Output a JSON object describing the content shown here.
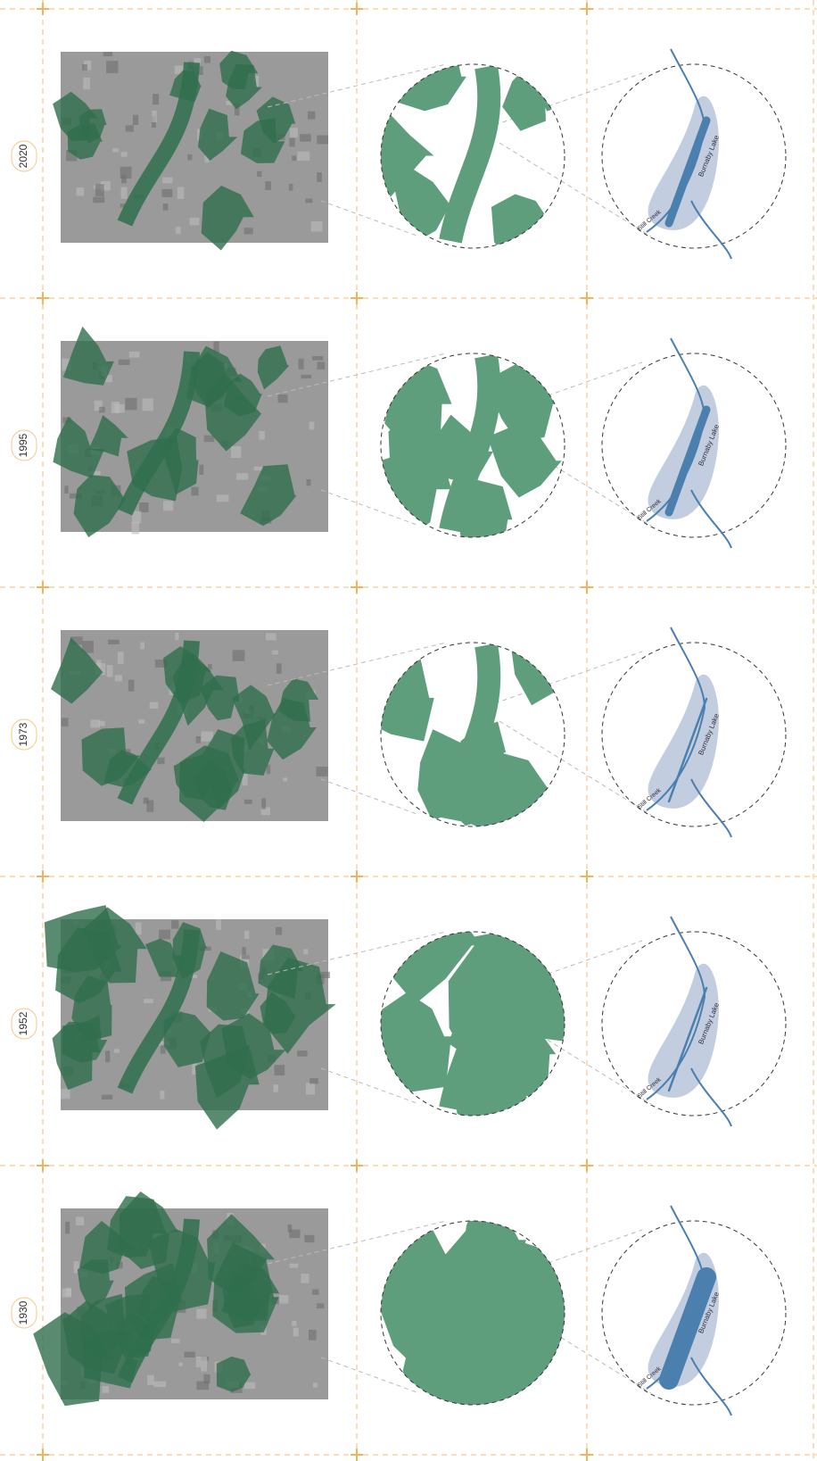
{
  "rows": [
    {
      "year": "2020",
      "lake_label": "Burnaby Lake",
      "creek_label": "Still Creek"
    },
    {
      "year": "1995",
      "lake_label": "Burnaby Lake",
      "creek_label": "Still Creek"
    },
    {
      "year": "1973",
      "lake_label": "Burnaby Lake",
      "creek_label": "Still Creek"
    },
    {
      "year": "1952",
      "lake_label": "Burnaby Lake",
      "creek_label": "Still Creek"
    },
    {
      "year": "1930",
      "lake_label": "Burnaby Lake",
      "creek_label": "Still Creek"
    }
  ]
}
